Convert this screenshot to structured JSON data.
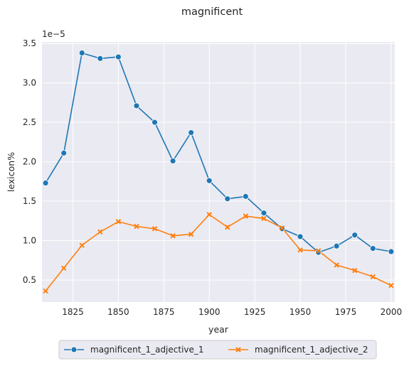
{
  "chart_data": {
    "type": "line",
    "title": "magnificent",
    "xlabel": "year",
    "ylabel": "lexicon%",
    "offset_label": "1e−5",
    "x": [
      1810,
      1820,
      1830,
      1840,
      1850,
      1860,
      1870,
      1880,
      1890,
      1900,
      1910,
      1920,
      1930,
      1940,
      1950,
      1960,
      1970,
      1980,
      1990,
      2000
    ],
    "series": [
      {
        "name": "magnificent_1_adjective_1",
        "color": "#1f77b4",
        "marker": "circle",
        "values": [
          1.73,
          2.11,
          3.38,
          3.31,
          3.33,
          2.71,
          2.5,
          2.01,
          2.37,
          1.76,
          1.53,
          1.56,
          1.35,
          1.15,
          1.05,
          0.85,
          0.93,
          1.07,
          0.9,
          0.86
        ]
      },
      {
        "name": "magnificent_1_adjective_2",
        "color": "#ff7f0e",
        "marker": "x",
        "values": [
          0.36,
          0.65,
          0.94,
          1.11,
          1.24,
          1.18,
          1.15,
          1.06,
          1.08,
          1.33,
          1.17,
          1.31,
          1.28,
          1.16,
          0.88,
          0.87,
          0.69,
          0.62,
          0.54,
          0.43
        ]
      }
    ],
    "xlim": [
      1808,
      2002
    ],
    "ylim": [
      0.22,
      3.52
    ],
    "xticks": [
      1825,
      1850,
      1875,
      1900,
      1925,
      1950,
      1975,
      2000
    ],
    "xtick_labels": [
      "1825",
      "1850",
      "1875",
      "1900",
      "1925",
      "1950",
      "1975",
      "2000"
    ],
    "yticks": [
      0.5,
      1.0,
      1.5,
      2.0,
      2.5,
      3.0,
      3.5
    ],
    "ytick_labels": [
      "0.5",
      "1.0",
      "1.5",
      "2.0",
      "2.5",
      "3.0",
      "3.5"
    ],
    "grid": true,
    "legend_position": "bottom-center"
  }
}
